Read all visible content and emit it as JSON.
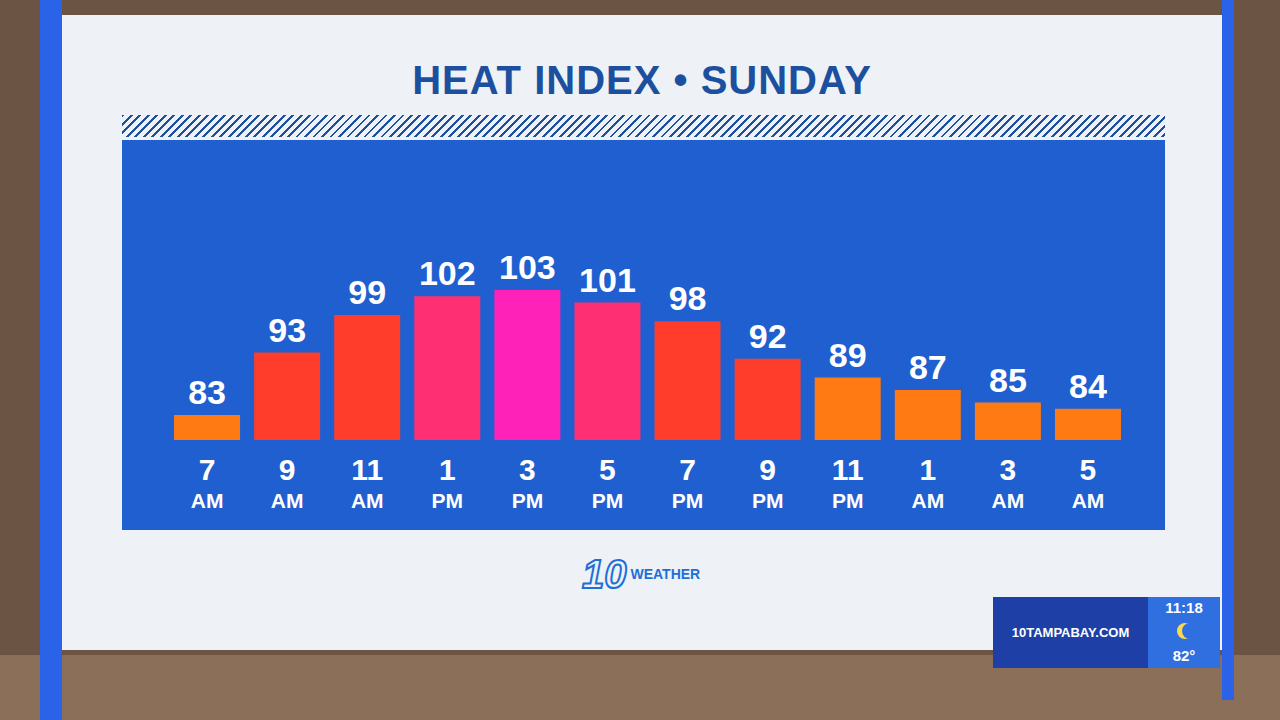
{
  "chart_data": {
    "type": "bar",
    "title": "HEAT INDEX • SUNDAY",
    "categories": [
      "7 AM",
      "9 AM",
      "11 AM",
      "1 PM",
      "3 PM",
      "5 PM",
      "7 PM",
      "9 PM",
      "11 PM",
      "1 AM",
      "3 AM",
      "5 AM"
    ],
    "values": [
      83,
      93,
      99,
      102,
      103,
      101,
      98,
      92,
      89,
      87,
      85,
      84
    ],
    "colors": [
      "#ff7a12",
      "#ff3d2a",
      "#ff3d2a",
      "#ff2f73",
      "#ff22b8",
      "#ff2f73",
      "#ff3d2a",
      "#ff3d2a",
      "#ff7a12",
      "#ff7a12",
      "#ff7a12",
      "#ff7a12"
    ],
    "ylim": [
      79,
      127
    ],
    "grid": false,
    "data_labels": true,
    "tick_labels": "x"
  },
  "logo": {
    "number": "10",
    "text": "WEATHER"
  },
  "ticker": {
    "site": "10TAMPABAY.COM",
    "time": "11:18",
    "temperature": "82°"
  }
}
